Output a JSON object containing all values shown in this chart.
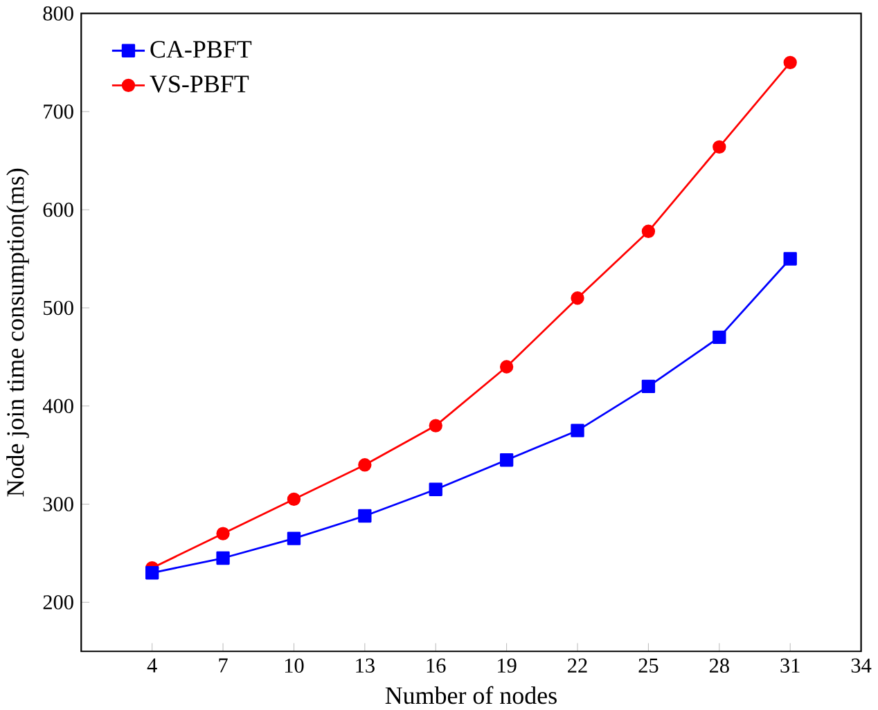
{
  "chart_data": {
    "type": "line",
    "xlabel": "Number of nodes",
    "ylabel": "Node join time consumption(ms)",
    "x": [
      4,
      7,
      10,
      13,
      16,
      19,
      22,
      25,
      28,
      31
    ],
    "series": [
      {
        "name": "CA-PBFT",
        "color": "#0000ff",
        "marker": "square",
        "values": [
          230,
          245,
          265,
          288,
          315,
          345,
          375,
          420,
          470,
          550
        ]
      },
      {
        "name": "VS-PBFT",
        "color": "#ff0000",
        "marker": "circle",
        "values": [
          235,
          270,
          305,
          340,
          380,
          440,
          510,
          578,
          664,
          750
        ]
      }
    ],
    "xlim": [
      1,
      34
    ],
    "ylim": [
      150,
      800
    ],
    "xticks": [
      4,
      7,
      10,
      13,
      16,
      19,
      22,
      25,
      28,
      31,
      34
    ],
    "yticks": [
      200,
      300,
      400,
      500,
      600,
      700,
      800
    ],
    "legend": "top left",
    "grid": false
  }
}
